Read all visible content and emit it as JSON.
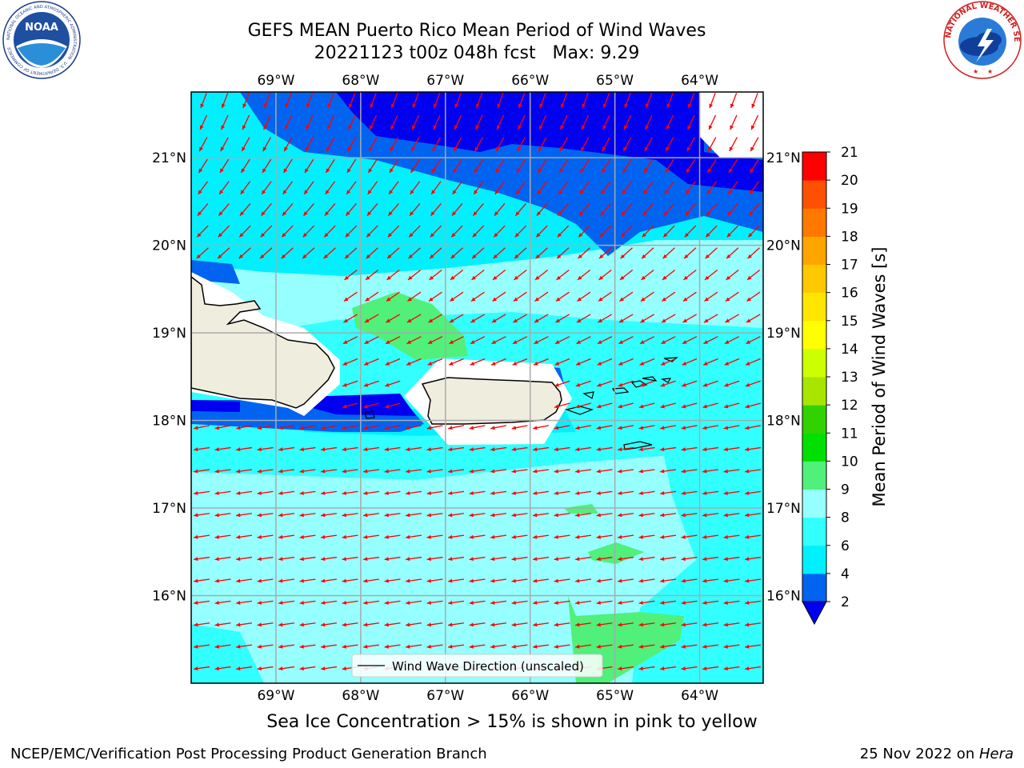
{
  "header": {
    "title_line1": "GEFS MEAN Puerto Rico Mean Period of Wind Waves",
    "title_line2": "20221123 t00z 048h fcst   Max: 9.29"
  },
  "logos": {
    "left": {
      "name": "noaa-logo",
      "text": "NOAA",
      "ring_text": "NATIONAL OCEANIC AND ATMOSPHERIC ADMINISTRATION · U.S. DEPARTMENT OF COMMERCE"
    },
    "right": {
      "name": "nws-logo",
      "ring_text": "NATIONAL WEATHER SERVICE"
    }
  },
  "map": {
    "lon_ticks": [
      "69°W",
      "68°W",
      "67°W",
      "66°W",
      "65°W",
      "64°W"
    ],
    "lat_ticks": [
      "21°N",
      "20°N",
      "19°N",
      "18°N",
      "17°N",
      "16°N"
    ],
    "lon_values": [
      -69,
      -68,
      -67,
      -66,
      -65,
      -64
    ],
    "lat_values": [
      21,
      20,
      19,
      18,
      17,
      16
    ],
    "extent": {
      "lon_min": -70.0,
      "lon_max": -63.25,
      "lat_min": 15.0,
      "lat_max": 21.75
    },
    "legend_label": "Wind Wave Direction (unscaled)",
    "land_color": "#efedde",
    "arrow_color": "#ff0000"
  },
  "colorbar": {
    "label": "Mean Period of Wind Waves [s]",
    "ticks": [
      "2",
      "4",
      "6",
      "8",
      "9",
      "10",
      "11",
      "12",
      "13",
      "14",
      "15",
      "16",
      "17",
      "18",
      "19",
      "20",
      "21"
    ],
    "colors": [
      "#0064f0",
      "#00f0ff",
      "#32ffff",
      "#96ffff",
      "#50f07a",
      "#00e000",
      "#32d200",
      "#a8e600",
      "#ccff00",
      "#ffff00",
      "#ffe600",
      "#ffc800",
      "#ffa500",
      "#ff7800",
      "#ff5000",
      "#ff0000"
    ],
    "under_color": "#0000f0"
  },
  "chart_data": {
    "type": "heatmap",
    "title": "GEFS MEAN Puerto Rico Mean Period of Wind Waves",
    "subtitle": "20221123 t00z 048h fcst   Max: 9.29",
    "variable": "Mean Period of Wind Waves [s]",
    "max_value": 9.29,
    "levels": [
      2,
      4,
      6,
      8,
      9,
      10,
      11,
      12,
      13,
      14,
      15,
      16,
      17,
      18,
      19,
      20,
      21
    ],
    "xlim": [
      -70.0,
      -63.25
    ],
    "ylim": [
      15.0,
      21.75
    ],
    "regions": [
      {
        "range": "<2",
        "area": "northern waters east of 68°W"
      },
      {
        "range": "2–4",
        "area": "north of 20°N band and narrow strip south of Hispaniola"
      },
      {
        "range": "4–6",
        "area": "central-north waters"
      },
      {
        "range": "6–8",
        "area": "southeastern waters"
      },
      {
        "range": "8–9",
        "area": "Caribbean south of Puerto Rico"
      },
      {
        "range": "9–10",
        "area": "small patches near 19°N 67.5°W and south of 16°N"
      }
    ]
  },
  "footer": {
    "note": "Sea Ice Concentration > 15% is shown in pink to yellow",
    "left": "NCEP/EMC/Verification Post Processing Product Generation Branch",
    "date": "25 Nov 2022 on ",
    "system": "Hera"
  }
}
